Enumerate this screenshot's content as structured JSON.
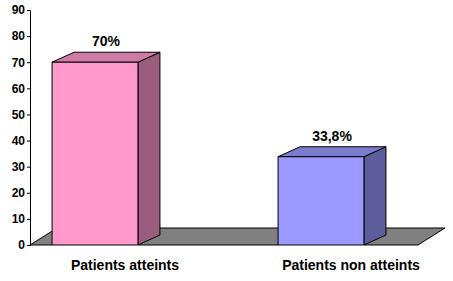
{
  "chart_data": {
    "type": "bar",
    "categories": [
      "Patients atteints",
      "Patients non atteints"
    ],
    "values": [
      70,
      33.8
    ],
    "value_labels": [
      "70%",
      "33,8%"
    ],
    "colors": [
      "#ff99cc",
      "#9999ff"
    ],
    "ylim": [
      0,
      90
    ],
    "yticks": [
      0,
      10,
      20,
      30,
      40,
      50,
      60,
      70,
      80,
      90
    ],
    "data_labels": true
  }
}
